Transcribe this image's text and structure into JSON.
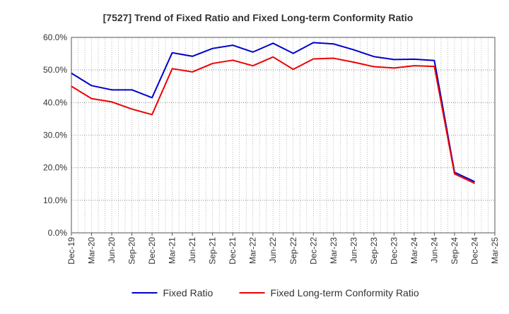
{
  "chart_data": {
    "type": "line",
    "title": "[7527]  Trend of Fixed Ratio and Fixed Long-term Conformity Ratio",
    "xlabel": "",
    "ylabel": "",
    "ylim": [
      0,
      60
    ],
    "yticks": [
      0,
      10,
      20,
      30,
      40,
      50,
      60
    ],
    "ytick_labels": [
      "0.0%",
      "10.0%",
      "20.0%",
      "30.0%",
      "40.0%",
      "50.0%",
      "60.0%"
    ],
    "categories": [
      "Dec-19",
      "Mar-20",
      "Jun-20",
      "Sep-20",
      "Dec-20",
      "Mar-21",
      "Jun-21",
      "Sep-21",
      "Dec-21",
      "Mar-22",
      "Jun-22",
      "Sep-22",
      "Dec-22",
      "Mar-23",
      "Jun-23",
      "Sep-23",
      "Dec-23",
      "Mar-24",
      "Jun-24",
      "Sep-24",
      "Dec-24",
      "Mar-25"
    ],
    "grid": true,
    "legend_position": "bottom",
    "series": [
      {
        "name": "Fixed Ratio",
        "color": "#0000cc",
        "values": [
          49.0,
          45.2,
          43.9,
          43.9,
          41.5,
          55.3,
          54.2,
          56.6,
          57.6,
          55.5,
          58.2,
          55.1,
          58.4,
          58.0,
          56.2,
          54.1,
          53.2,
          53.3,
          52.9,
          18.6,
          15.7,
          null
        ]
      },
      {
        "name": "Fixed Long-term Conformity Ratio",
        "color": "#ee0000",
        "values": [
          45.0,
          41.2,
          40.2,
          38.0,
          36.3,
          50.4,
          49.4,
          52.0,
          53.0,
          51.3,
          54.0,
          50.2,
          53.4,
          53.6,
          52.4,
          51.0,
          50.6,
          51.3,
          51.1,
          18.1,
          15.2,
          null
        ]
      }
    ]
  }
}
